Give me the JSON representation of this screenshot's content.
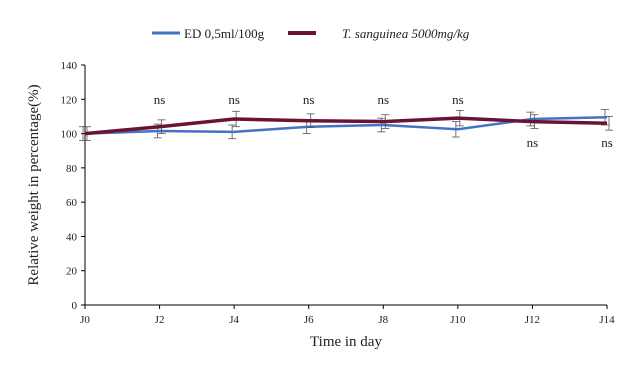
{
  "chart_data": {
    "type": "line",
    "title": "",
    "xlabel": "Time in day",
    "ylabel": "Relative weight in percentage(%)",
    "categories": [
      "J0",
      "J2",
      "J4",
      "J6",
      "J8",
      "J10",
      "J12",
      "J14"
    ],
    "ylim": [
      0,
      140
    ],
    "yticks": [
      0,
      20,
      40,
      60,
      80,
      100,
      120,
      140
    ],
    "grid": false,
    "legend_position": "top",
    "series": [
      {
        "name": "ED 0,5ml/100g",
        "color": "#4472C4",
        "values": [
          100,
          101.5,
          101,
          104,
          105,
          102.5,
          108.5,
          109.5
        ],
        "errors": [
          4,
          4,
          4,
          4,
          4,
          4.5,
          4,
          4.5
        ]
      },
      {
        "name": "T. sanguinea  5000mg/kg",
        "color": "#6B1334",
        "values": [
          100,
          104,
          108.5,
          107.5,
          107,
          109,
          107,
          106
        ],
        "errors": [
          4,
          4,
          4.5,
          4,
          4,
          4.5,
          4,
          4
        ]
      }
    ],
    "annotations": [
      {
        "category": "J2",
        "text": "ns",
        "position": "above"
      },
      {
        "category": "J4",
        "text": "ns",
        "position": "above"
      },
      {
        "category": "J6",
        "text": "ns",
        "position": "above"
      },
      {
        "category": "J8",
        "text": "ns",
        "position": "above"
      },
      {
        "category": "J10",
        "text": "ns",
        "position": "above"
      },
      {
        "category": "J12",
        "text": "ns",
        "position": "below"
      },
      {
        "category": "J14",
        "text": "ns",
        "position": "below"
      }
    ]
  }
}
